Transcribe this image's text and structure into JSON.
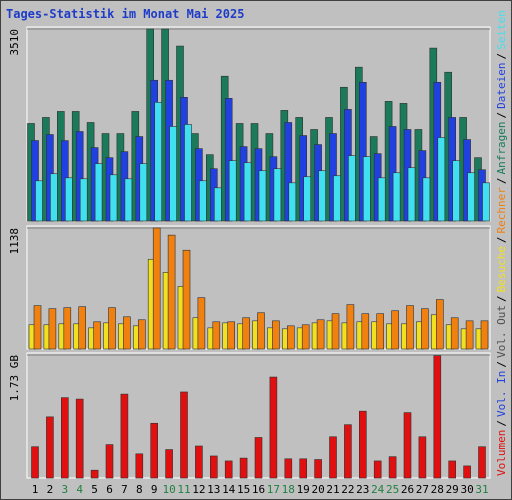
{
  "title": "Tages-Statistik im Monat Mai 2025",
  "legend_separator": "/",
  "weekend_indices": [
    2,
    3,
    9,
    10,
    16,
    17,
    23,
    24,
    30
  ],
  "weekend_color": "#208040",
  "chart_data": [
    {
      "type": "bar",
      "ylim": [
        0,
        3510
      ],
      "yticks": [
        3510
      ],
      "series": [
        {
          "name": "Anfragen",
          "color": "#1a7a5a",
          "values": [
            1783,
            1893,
            2003,
            2003,
            1801,
            1599,
            1599,
            2003,
            3510,
            3510,
            3198,
            1599,
            1213,
            2647,
            1783,
            1783,
            1599,
            2022,
            1893,
            1673,
            1893,
            2445,
            2812,
            1544,
            2187,
            2150,
            1673,
            3161,
            2720,
            1893,
            1158
          ]
        },
        {
          "name": "Dateien",
          "color": "#2040e0",
          "values": [
            1471,
            1581,
            1470,
            1636,
            1342,
            1158,
            1268,
            1544,
            2573,
            2573,
            2261,
            1323,
            956,
            2242,
            1360,
            1323,
            1176,
            1801,
            1562,
            1397,
            1599,
            2040,
            2536,
            1231,
            1728,
            1673,
            1287,
            2536,
            1893,
            1489,
            937
          ]
        },
        {
          "name": "Seiten",
          "color": "#40e0f0",
          "values": [
            735,
            864,
            790,
            772,
            1048,
            845,
            772,
            1048,
            2169,
            1728,
            1764,
            735,
            607,
            1103,
            1066,
            919,
            956,
            698,
            809,
            919,
            827,
            1195,
            1176,
            790,
            882,
            974,
            790,
            1526,
            1103,
            882,
            698
          ]
        }
      ]
    },
    {
      "type": "bar",
      "ylim": [
        0,
        1138
      ],
      "yticks": [
        1138
      ],
      "series": [
        {
          "name": "Besuche",
          "color": "#f0e020",
          "values": [
            228,
            228,
            237,
            237,
            199,
            246,
            237,
            218,
            844,
            721,
            588,
            294,
            199,
            246,
            237,
            265,
            199,
            190,
            199,
            246,
            265,
            246,
            256,
            256,
            237,
            237,
            256,
            322,
            228,
            190,
            190
          ]
        },
        {
          "name": "Rechner",
          "color": "#f08010",
          "values": [
            408,
            379,
            389,
            398,
            256,
            389,
            303,
            275,
            1138,
            1071,
            929,
            483,
            256,
            256,
            294,
            341,
            265,
            218,
            228,
            275,
            332,
            417,
            332,
            332,
            360,
            408,
            379,
            465,
            294,
            265,
            265
          ]
        }
      ]
    },
    {
      "type": "bar",
      "ylim": [
        0,
        1.73
      ],
      "yticks": [
        {
          "value": 1.73,
          "label": "1.73 GB"
        }
      ],
      "legend_extra": [
        {
          "name": "Vol. In",
          "color": "#2040e0"
        },
        {
          "name": "Vol. Out",
          "color": "#505050"
        }
      ],
      "categories": [
        "1",
        "2",
        "3",
        "4",
        "5",
        "6",
        "7",
        "8",
        "9",
        "10",
        "11",
        "12",
        "13",
        "14",
        "15",
        "16",
        "17",
        "18",
        "19",
        "20",
        "21",
        "22",
        "23",
        "24",
        "25",
        "26",
        "27",
        "28",
        "29",
        "30",
        "31"
      ],
      "series": [
        {
          "name": "Volumen",
          "color": "#e01010",
          "values": [
            0.44,
            0.86,
            1.13,
            1.11,
            0.11,
            0.47,
            1.18,
            0.34,
            0.77,
            0.4,
            1.21,
            0.45,
            0.31,
            0.24,
            0.28,
            0.57,
            1.42,
            0.27,
            0.27,
            0.26,
            0.58,
            0.75,
            0.94,
            0.24,
            0.3,
            0.92,
            0.58,
            1.72,
            0.24,
            0.17,
            0.44
          ]
        }
      ]
    }
  ]
}
